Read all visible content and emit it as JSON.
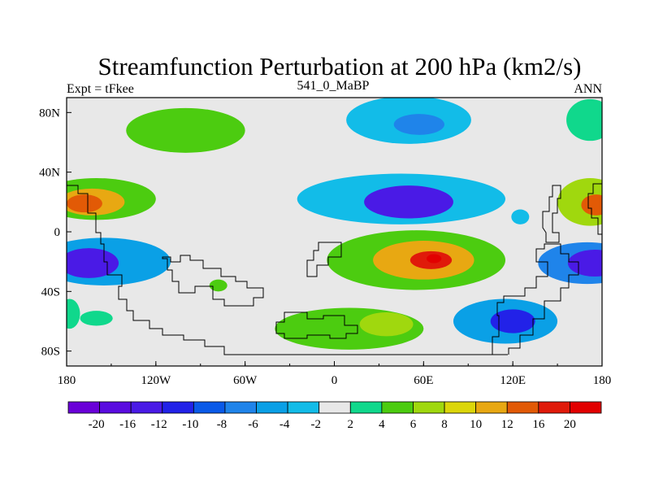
{
  "chart_data": {
    "type": "heatmap",
    "title": "Streamfunction Perturbation at 200 hPa (km2/s)",
    "left_string": "Expt = tFkee",
    "center_string": "541_0_MaBP",
    "right_string": "ANN",
    "x_range": [
      -180,
      180
    ],
    "y_range": [
      -90,
      90
    ],
    "x_ticks": [
      {
        "value": -180,
        "label": "180"
      },
      {
        "value": -120,
        "label": "120W"
      },
      {
        "value": -60,
        "label": "60W"
      },
      {
        "value": 0,
        "label": "0"
      },
      {
        "value": 60,
        "label": "60E"
      },
      {
        "value": 120,
        "label": "120E"
      },
      {
        "value": 180,
        "label": "180"
      }
    ],
    "y_ticks": [
      {
        "value": 80,
        "label": "80N"
      },
      {
        "value": 40,
        "label": "40N"
      },
      {
        "value": 0,
        "label": "0"
      },
      {
        "value": -40,
        "label": "40S"
      },
      {
        "value": -80,
        "label": "80S"
      }
    ],
    "colorbar": {
      "levels": [
        -20,
        -16,
        -12,
        -10,
        -8,
        -6,
        -4,
        -2,
        2,
        4,
        6,
        8,
        10,
        12,
        16,
        20
      ],
      "labels": [
        "-20",
        "-16",
        "-12",
        "-10",
        "-8",
        "-6",
        "-4",
        "-2",
        "2",
        "4",
        "6",
        "8",
        "10",
        "12",
        "16",
        "20"
      ],
      "colors": [
        "#6a00d8",
        "#5a0ce0",
        "#4a1ae6",
        "#2222e8",
        "#0a5ae8",
        "#1f84ea",
        "#0aa0e6",
        "#12bce8",
        "#e8e8e8",
        "#10d88c",
        "#4ccc10",
        "#a0d80e",
        "#dcd60a",
        "#e8a812",
        "#e25a06",
        "#e01a0a",
        "#e20000"
      ]
    },
    "features": [
      {
        "center": [
          -100,
          68
        ],
        "radii": [
          40,
          15
        ],
        "value": 5
      },
      {
        "center": [
          -160,
          22
        ],
        "radii": [
          40,
          14
        ],
        "value": 5
      },
      {
        "center": [
          -163,
          20
        ],
        "radii": [
          22,
          9
        ],
        "value": 10
      },
      {
        "center": [
          -168,
          19
        ],
        "radii": [
          12,
          6
        ],
        "value": 14
      },
      {
        "center": [
          -155,
          -20
        ],
        "radii": [
          45,
          16
        ],
        "value": -6
      },
      {
        "center": [
          -165,
          -21
        ],
        "radii": [
          20,
          10
        ],
        "value": -15
      },
      {
        "center": [
          -78,
          -36
        ],
        "radii": [
          6,
          4
        ],
        "value": 4
      },
      {
        "center": [
          -160,
          -58
        ],
        "radii": [
          11,
          5
        ],
        "value": 3
      },
      {
        "center": [
          10,
          -65
        ],
        "radii": [
          50,
          14
        ],
        "value": 5
      },
      {
        "center": [
          35,
          -62
        ],
        "radii": [
          18,
          8
        ],
        "value": 7
      },
      {
        "center": [
          55,
          -19
        ],
        "radii": [
          60,
          20
        ],
        "value": 5
      },
      {
        "center": [
          60,
          -19
        ],
        "radii": [
          34,
          13
        ],
        "value": 11
      },
      {
        "center": [
          65,
          -19
        ],
        "radii": [
          14,
          6
        ],
        "value": 16
      },
      {
        "center": [
          67,
          -18
        ],
        "radii": [
          5,
          3
        ],
        "value": 20
      },
      {
        "center": [
          45,
          22
        ],
        "radii": [
          70,
          17
        ],
        "value": -4
      },
      {
        "center": [
          50,
          20
        ],
        "radii": [
          30,
          11
        ],
        "value": -13
      },
      {
        "center": [
          50,
          75
        ],
        "radii": [
          42,
          16
        ],
        "value": -3
      },
      {
        "center": [
          57,
          72
        ],
        "radii": [
          17,
          7
        ],
        "value": -7
      },
      {
        "center": [
          115,
          -60
        ],
        "radii": [
          35,
          15
        ],
        "value": -5
      },
      {
        "center": [
          120,
          -60
        ],
        "radii": [
          15,
          8
        ],
        "value": -12
      },
      {
        "center": [
          172,
          20
        ],
        "radii": [
          22,
          16
        ],
        "value": 6
      },
      {
        "center": [
          176,
          18
        ],
        "radii": [
          10,
          7
        ],
        "value": 12
      },
      {
        "center": [
          170,
          -21
        ],
        "radii": [
          33,
          14
        ],
        "value": -7
      },
      {
        "center": [
          175,
          -21
        ],
        "radii": [
          18,
          9
        ],
        "value": -15
      },
      {
        "center": [
          172,
          75
        ],
        "radii": [
          16,
          14
        ],
        "value": 3
      },
      {
        "center": [
          -178,
          -55
        ],
        "radii": [
          7,
          10
        ],
        "value": 3
      },
      {
        "center": [
          125,
          10
        ],
        "radii": [
          6,
          5
        ],
        "value": -3
      }
    ]
  }
}
